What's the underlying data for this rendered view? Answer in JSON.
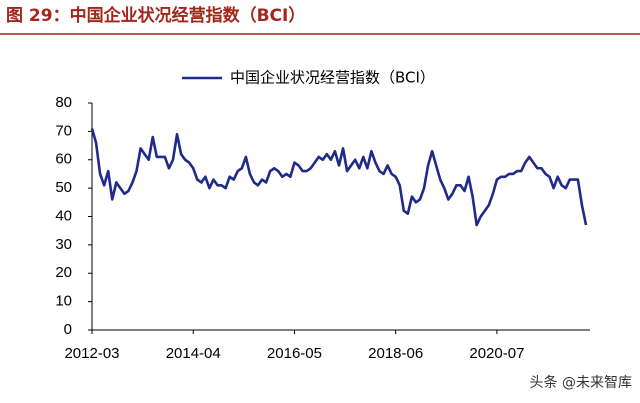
{
  "chart_data": {
    "type": "line",
    "title": "图 29：中国企业状况经营指数（BCI）",
    "watermark": "头条 @未来智库",
    "categories": [
      "2012-03",
      null,
      null,
      null,
      null,
      null,
      null,
      null,
      null,
      null,
      null,
      null,
      null,
      null,
      null,
      null,
      null,
      null,
      null,
      null,
      null,
      null,
      null,
      null,
      null,
      "2014-04",
      null,
      null,
      null,
      null,
      null,
      null,
      null,
      null,
      null,
      null,
      null,
      null,
      null,
      null,
      null,
      null,
      null,
      null,
      null,
      null,
      null,
      null,
      null,
      null,
      "2016-05",
      null,
      null,
      null,
      null,
      null,
      null,
      null,
      null,
      null,
      null,
      null,
      null,
      null,
      null,
      null,
      null,
      null,
      null,
      null,
      null,
      null,
      null,
      null,
      null,
      "2018-06",
      null,
      null,
      null,
      null,
      null,
      null,
      null,
      null,
      null,
      null,
      null,
      null,
      null,
      null,
      null,
      null,
      null,
      null,
      null,
      null,
      null,
      null,
      null,
      null,
      "2020-07",
      null,
      null,
      null,
      null,
      null,
      null,
      null,
      null,
      null,
      null,
      null,
      null,
      null,
      null,
      null,
      null,
      null,
      null,
      null,
      null,
      null,
      null
    ],
    "series": [
      {
        "name": "中国企业状况经营指数（BCI）",
        "color": "#1f2a8a",
        "values": [
          71,
          66,
          55,
          51,
          56,
          46,
          52,
          50,
          48,
          49,
          52,
          56,
          64,
          62,
          60,
          68,
          61,
          61,
          61,
          57,
          60,
          69,
          62,
          60,
          59,
          57,
          53,
          52,
          54,
          50,
          53,
          51,
          51,
          50,
          54,
          53,
          56,
          57,
          61,
          55,
          52,
          51,
          53,
          52,
          56,
          57,
          56,
          54,
          55,
          54,
          59,
          58,
          56,
          56,
          57,
          59,
          61,
          60,
          62,
          60,
          63,
          58,
          64,
          56,
          58,
          60,
          57,
          61,
          57,
          63,
          59,
          56,
          55,
          58,
          55,
          54,
          51,
          42,
          41,
          47,
          45,
          46,
          50,
          58,
          63,
          58,
          53,
          50,
          46,
          48,
          51,
          51,
          49,
          54,
          47,
          37,
          40,
          42,
          44,
          48,
          53,
          54,
          54,
          55,
          55,
          56,
          56,
          59,
          61,
          59,
          57,
          57,
          55,
          54,
          50,
          54,
          51,
          50,
          53,
          53,
          53,
          44,
          37
        ]
      }
    ],
    "ylim": [
      0,
      80
    ],
    "yticks": [
      0,
      10,
      20,
      30,
      40,
      50,
      60,
      70,
      80
    ],
    "legend": "top"
  }
}
